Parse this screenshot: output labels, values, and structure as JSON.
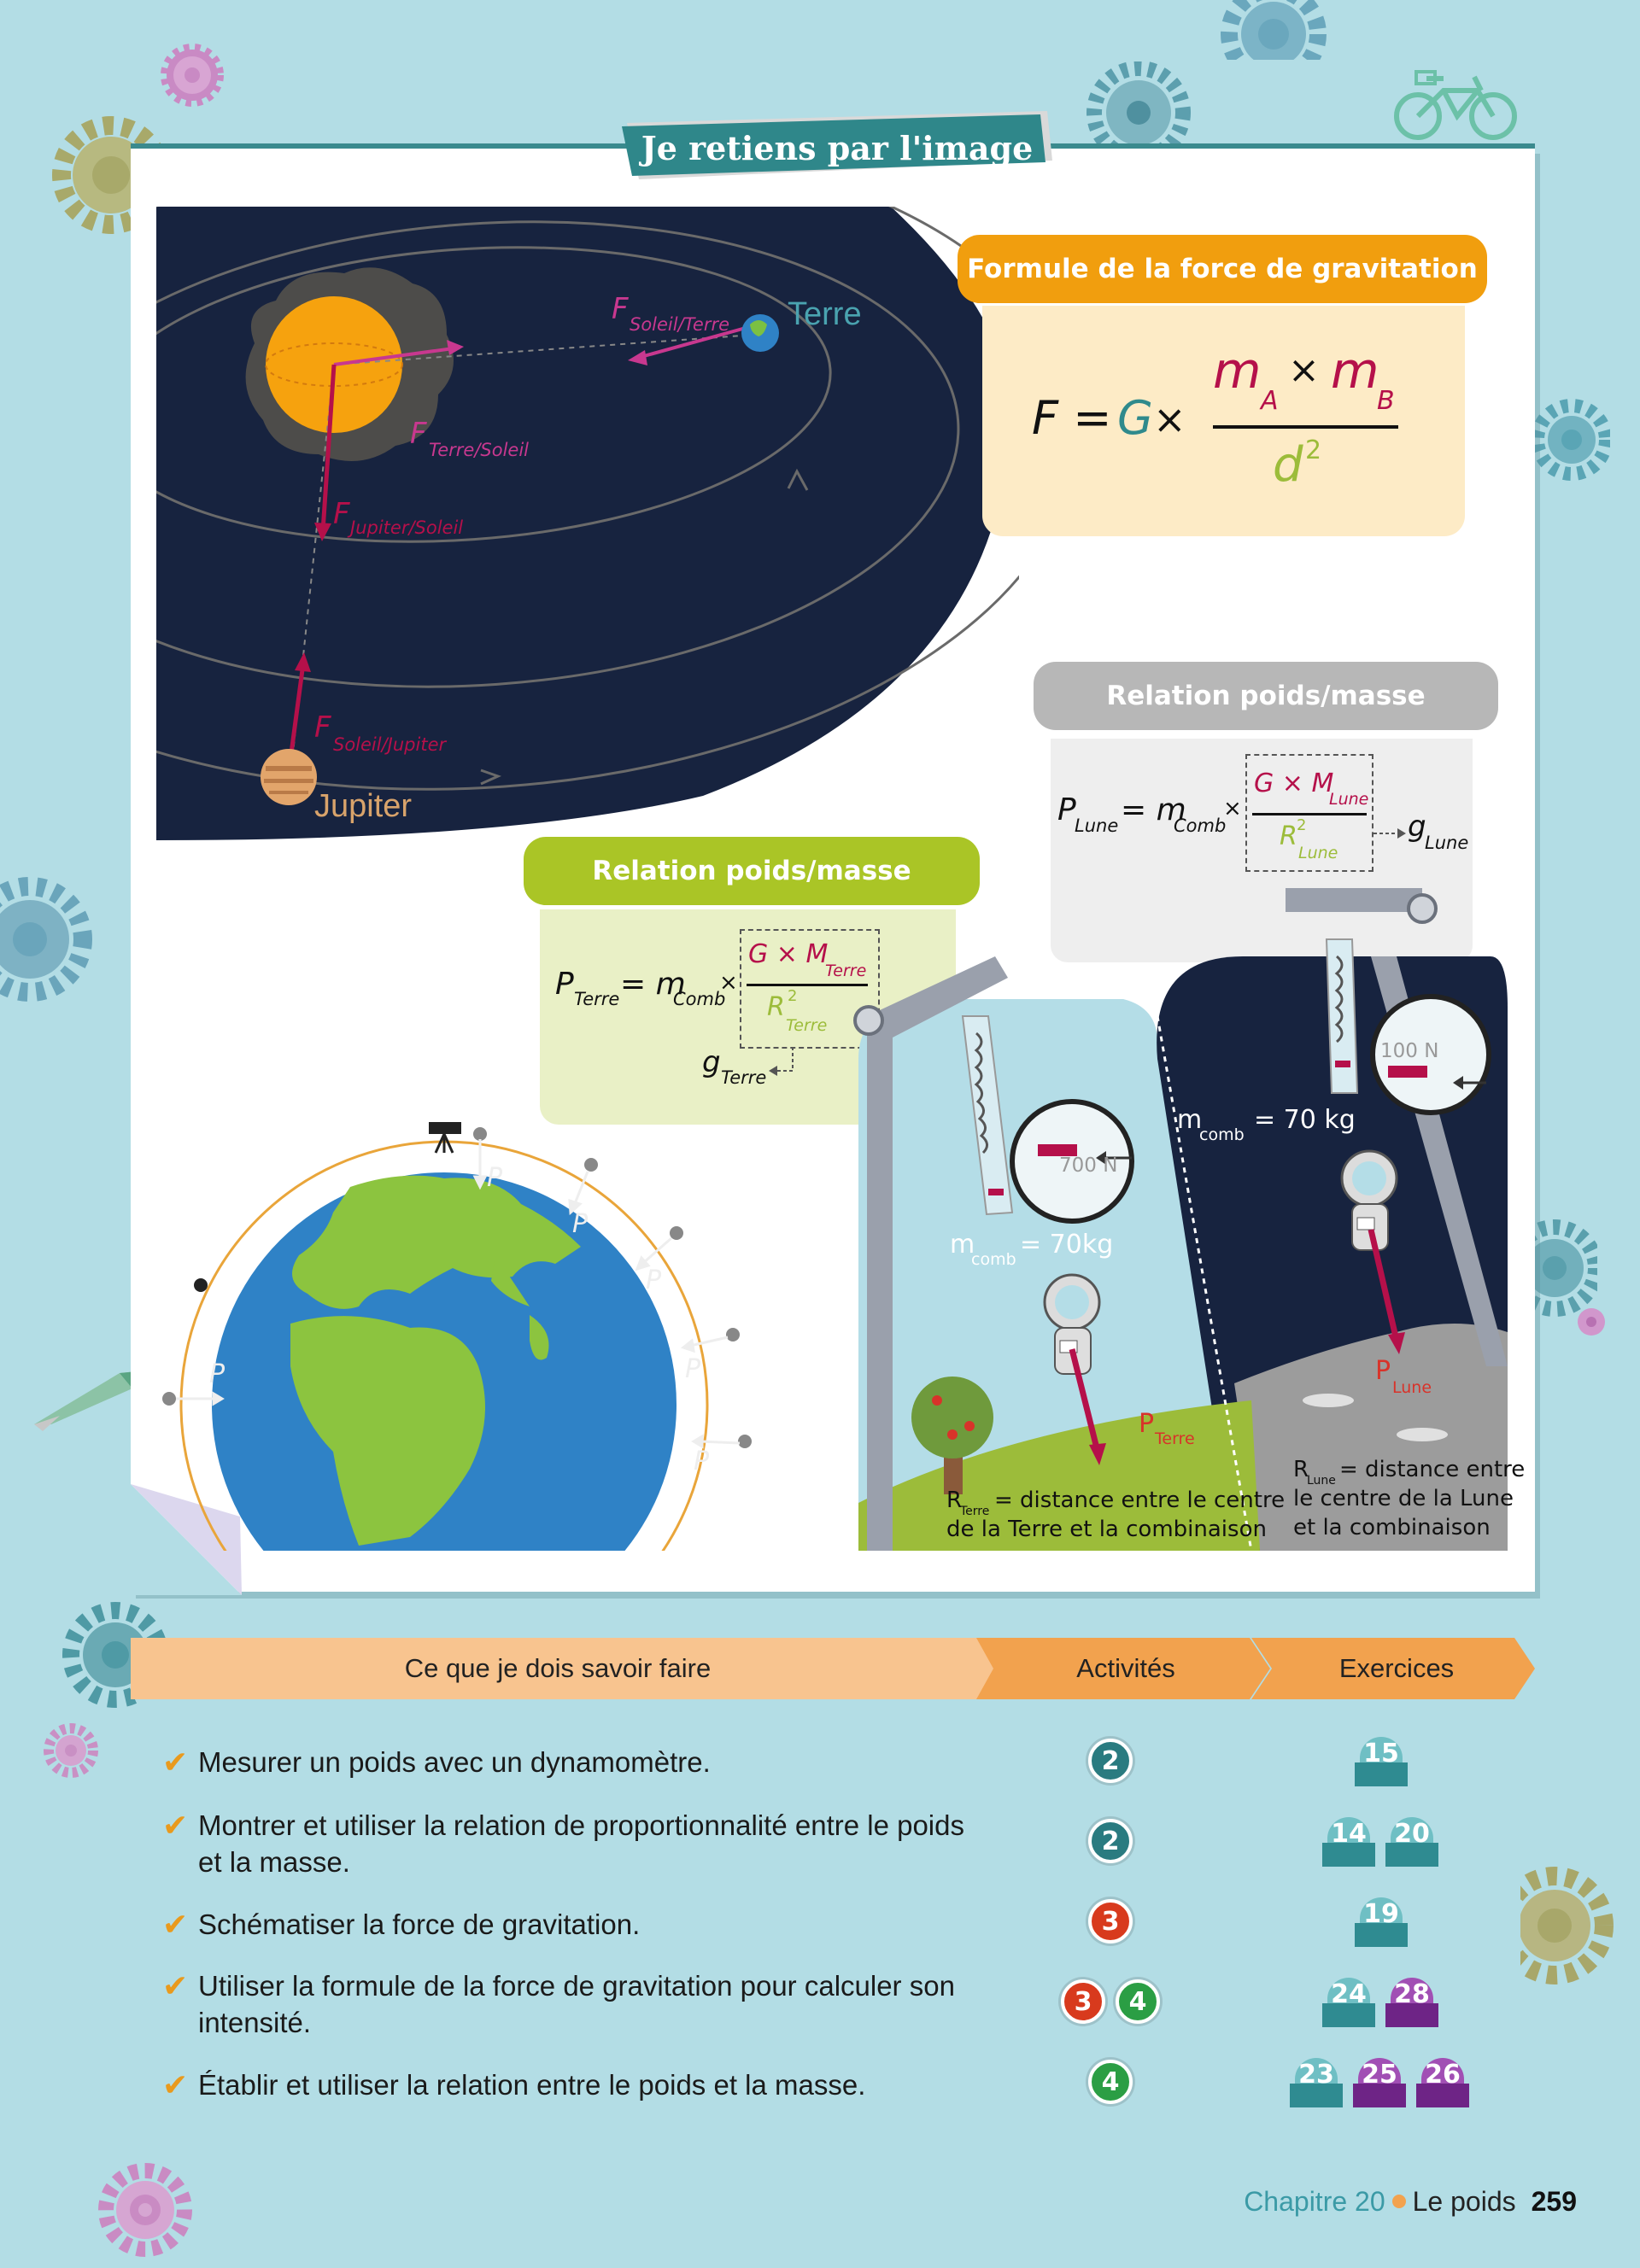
{
  "ribbon": {
    "title": "Je retiens par l'image"
  },
  "solar": {
    "earth_label": "Terre",
    "jupiter_label": "Jupiter",
    "f_soleil_terre_main": "F",
    "f_soleil_terre_sub": "Soleil/Terre",
    "f_terre_soleil_main": "F",
    "f_terre_soleil_sub": "Terre/Soleil",
    "f_jupiter_soleil_main": "F",
    "f_jupiter_soleil_sub": "Jupiter/Soleil",
    "f_soleil_jupiter_main": "F",
    "f_soleil_jupiter_sub": "Soleil/Jupiter"
  },
  "gravity_formula": {
    "heading": "Formule de la force de gravitation",
    "lhs": "F = ",
    "G": "G",
    "times": " ×",
    "mA": "m",
    "mA_sub": "A",
    "mid_times": "×",
    "mB": "m",
    "mB_sub": "B",
    "d": "d",
    "d_exp": "2"
  },
  "moon_relation": {
    "heading": "Relation poids/masse",
    "P": "P",
    "P_sub": "Lune",
    "eq": "= m",
    "m_sub": "Comb",
    "times": "×",
    "num": "G × M",
    "num_sub": "Lune",
    "den": "R",
    "den_exp": "2",
    "den_sub": "Lune",
    "g": "g",
    "g_sub": "Lune"
  },
  "earth_relation": {
    "heading": "Relation poids/masse",
    "P": "P",
    "P_sub": "Terre",
    "eq": "= m",
    "m_sub": "Comb",
    "times": "×",
    "num": "G × M",
    "num_sub": "Terre",
    "den": "R",
    "den_exp": "2",
    "den_sub": "Terre",
    "g": "g",
    "g_sub": "Terre"
  },
  "globe": {
    "p_label": "P"
  },
  "scene": {
    "earth_reading": "700 N",
    "moon_reading": "100 N",
    "mass_earth_main": "m",
    "mass_earth_sub": "comb",
    "mass_earth_val": "= 70kg",
    "mass_moon_main": "m",
    "mass_moon_sub": "comb",
    "mass_moon_val": "= 70 kg",
    "p_terre_main": "P",
    "p_terre_sub": "Terre",
    "p_lune_main": "P",
    "p_lune_sub": "Lune",
    "r_terre_main": "R",
    "r_terre_sub": "Terre",
    "r_terre_line1": "= distance entre le centre",
    "r_terre_line2": "de la Terre et la combinaison",
    "r_lune_main": "R",
    "r_lune_sub": "Lune",
    "r_lune_line1": "= distance entre",
    "r_lune_line2": "le centre de la Lune",
    "r_lune_line3": "et la combinaison"
  },
  "skills": {
    "header_col1": "Ce que je dois savoir faire",
    "header_col2": "Activités",
    "header_col3": "Exercices",
    "rows": [
      {
        "text": "Mesurer un poids avec un dynamomètre.",
        "activities": [
          "2"
        ],
        "exercises": [
          "15"
        ]
      },
      {
        "text": "Montrer et utiliser la relation de proportionnalité entre le poids et la masse.",
        "activities": [
          "2"
        ],
        "exercises": [
          "14",
          "20"
        ]
      },
      {
        "text": "Schématiser la force de gravitation.",
        "activities": [
          "3"
        ],
        "exercises": [
          "19"
        ]
      },
      {
        "text": "Utiliser la formule de la force de gravitation pour calculer son intensité.",
        "activities": [
          "3",
          "4"
        ],
        "exercises": [
          "24",
          "28"
        ]
      },
      {
        "text": "Établir et utiliser la relation entre le poids et la masse.",
        "activities": [
          "4"
        ],
        "exercises": [
          "23",
          "25",
          "26"
        ]
      }
    ],
    "check_glyph": "✔"
  },
  "footer": {
    "chapter": "Chapitre 20",
    "title": "Le poids",
    "page": "259"
  },
  "colors": {
    "background": "#b3dde5",
    "teal": "#2f8a8c",
    "orange": "#f19e0e",
    "space": "#17233f",
    "crimson": "#b5104a",
    "magenta": "#c8388f",
    "olive_green": "#9cbc3a",
    "activity_teal": "#2a7b80",
    "activity_red": "#d83a1d",
    "activity_green": "#2b9e44",
    "exercise_teal": "#3a9aa1",
    "exercise_purple": "#7a2a8e"
  }
}
